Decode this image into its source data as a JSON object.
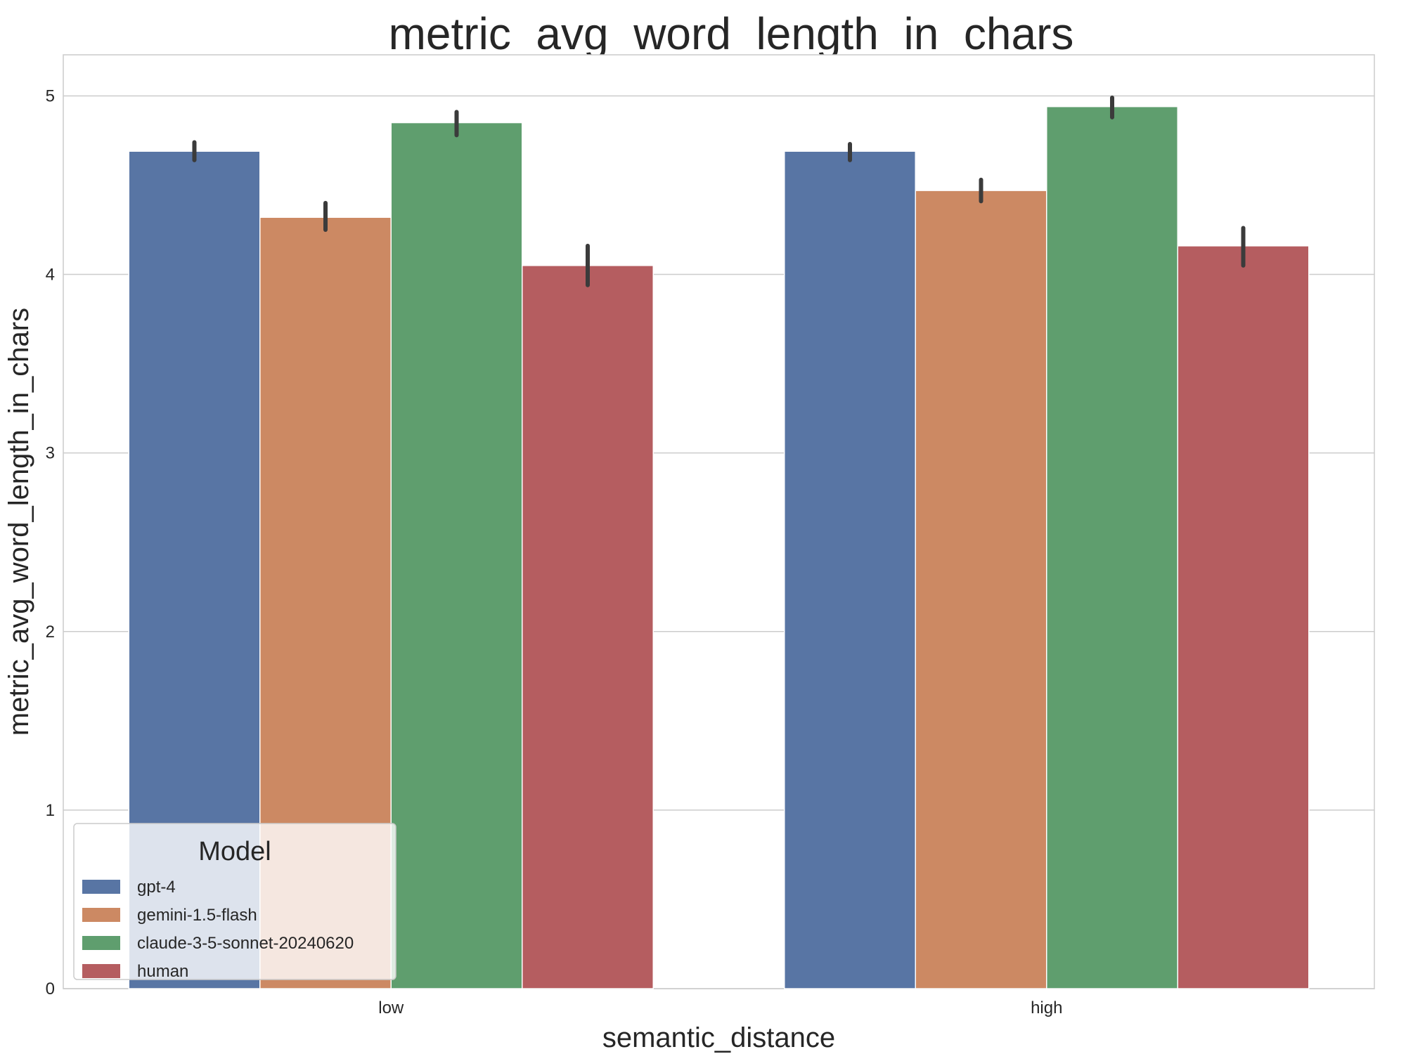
{
  "chart_data": {
    "type": "bar",
    "title": "metric_avg_word_length_in_chars",
    "xlabel": "semantic_distance",
    "ylabel": "metric_avg_word_length_in_chars",
    "categories": [
      "low",
      "high"
    ],
    "yticks": [
      "0",
      "1",
      "2",
      "3",
      "4",
      "5"
    ],
    "ylim": [
      0,
      5.23
    ],
    "grid": true,
    "legend": {
      "title": "Model",
      "placement": "lower-left"
    },
    "series": [
      {
        "name": "gpt-4",
        "color": "#5875a4",
        "values": [
          4.69,
          4.69
        ],
        "error": [
          [
            4.64,
            4.74
          ],
          [
            4.64,
            4.73
          ]
        ]
      },
      {
        "name": "gemini-1.5-flash",
        "color": "#cc8963",
        "values": [
          4.32,
          4.47
        ],
        "error": [
          [
            4.25,
            4.4
          ],
          [
            4.41,
            4.53
          ]
        ]
      },
      {
        "name": "claude-3-5-sonnet-20240620",
        "color": "#5f9e6e",
        "values": [
          4.85,
          4.94
        ],
        "error": [
          [
            4.78,
            4.91
          ],
          [
            4.88,
            4.99
          ]
        ]
      },
      {
        "name": "human",
        "color": "#b55d60",
        "values": [
          4.05,
          4.16
        ],
        "error": [
          [
            3.94,
            4.16
          ],
          [
            4.05,
            4.26
          ]
        ]
      }
    ]
  }
}
